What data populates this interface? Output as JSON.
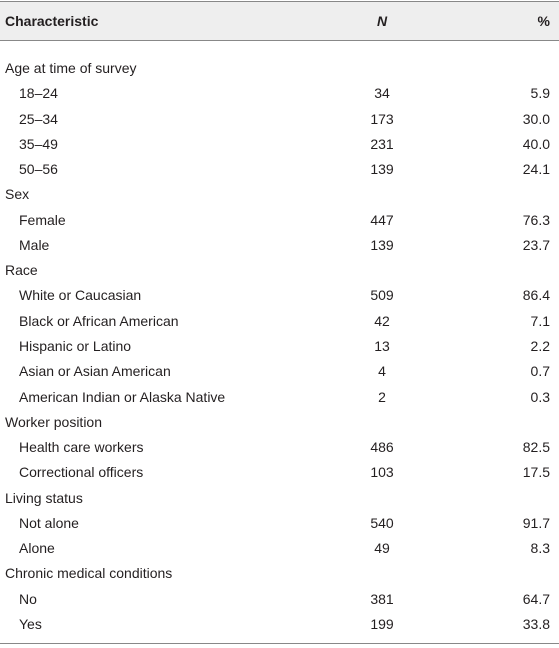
{
  "table": {
    "header": {
      "characteristic": "Characteristic",
      "n": "N",
      "percent": "%"
    },
    "groups": [
      {
        "label": "Age at time of survey",
        "rows": [
          [
            "18–24",
            "34",
            "5.9"
          ],
          [
            "25–34",
            "173",
            "30.0"
          ],
          [
            "35–49",
            "231",
            "40.0"
          ],
          [
            "50–56",
            "139",
            "24.1"
          ]
        ]
      },
      {
        "label": "Sex",
        "rows": [
          [
            "Female",
            "447",
            "76.3"
          ],
          [
            "Male",
            "139",
            "23.7"
          ]
        ]
      },
      {
        "label": "Race",
        "rows": [
          [
            "White or Caucasian",
            "509",
            "86.4"
          ],
          [
            "Black or African American",
            "42",
            "7.1"
          ],
          [
            "Hispanic or Latino",
            "13",
            "2.2"
          ],
          [
            "Asian or Asian American",
            "4",
            "0.7"
          ],
          [
            "American Indian or Alaska Native",
            "2",
            "0.3"
          ]
        ]
      },
      {
        "label": "Worker position",
        "rows": [
          [
            "Health care workers",
            "486",
            "82.5"
          ],
          [
            "Correctional officers",
            "103",
            "17.5"
          ]
        ]
      },
      {
        "label": "Living status",
        "rows": [
          [
            "Not alone",
            "540",
            "91.7"
          ],
          [
            "Alone",
            "49",
            "8.3"
          ]
        ]
      },
      {
        "label": "Chronic medical conditions",
        "rows": [
          [
            "No",
            "381",
            "64.7"
          ],
          [
            "Yes",
            "199",
            "33.8"
          ]
        ]
      }
    ]
  }
}
